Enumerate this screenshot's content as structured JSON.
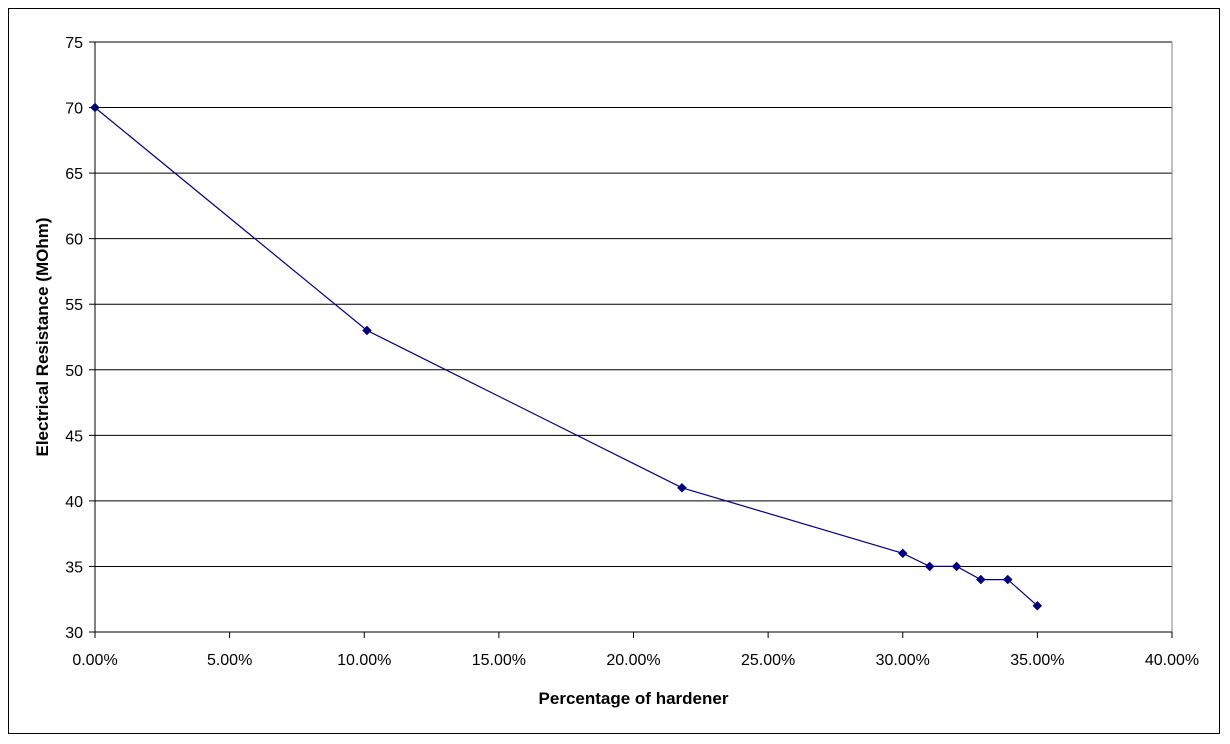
{
  "chart_data": {
    "type": "line",
    "title": "",
    "xlabel": "Percentage of hardener",
    "ylabel": "Electrical Resistance (MOhm)",
    "xlim": [
      0,
      40
    ],
    "ylim": [
      30,
      75
    ],
    "x_ticks": [
      0,
      5,
      10,
      15,
      20,
      25,
      30,
      35,
      40
    ],
    "x_tick_labels": [
      "0.00%",
      "5.00%",
      "10.00%",
      "15.00%",
      "20.00%",
      "25.00%",
      "30.00%",
      "35.00%",
      "40.00%"
    ],
    "y_ticks": [
      30,
      35,
      40,
      45,
      50,
      55,
      60,
      65,
      70,
      75
    ],
    "y_tick_labels": [
      "30",
      "35",
      "40",
      "45",
      "50",
      "55",
      "60",
      "65",
      "70",
      "75"
    ],
    "grid": "horizontal",
    "legend": "none",
    "series": [
      {
        "color": "#000080",
        "marker": "diamond",
        "x": [
          0,
          10.1,
          21.8,
          30,
          31,
          32,
          32.9,
          33.9,
          35
        ],
        "y": [
          70,
          53,
          41,
          36,
          35,
          35,
          34,
          34,
          32
        ]
      }
    ]
  }
}
